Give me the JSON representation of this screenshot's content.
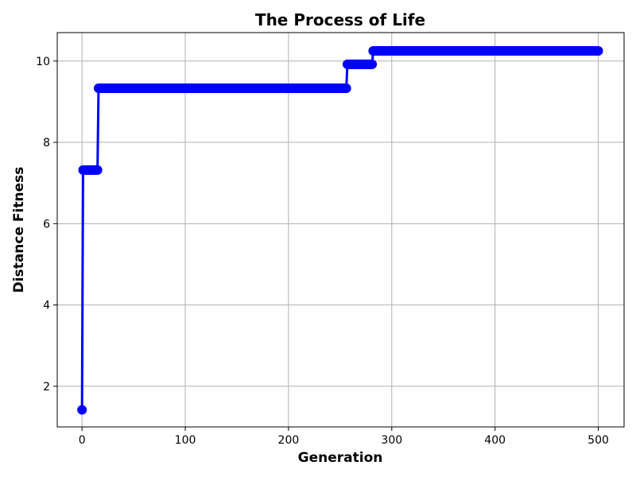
{
  "chart_data": {
    "type": "line",
    "title": "The Process of Life",
    "xlabel": "Generation",
    "ylabel": "Distance Fitness",
    "xlim": [
      -24,
      525
    ],
    "ylim": [
      1.0,
      10.7
    ],
    "xticks": [
      0,
      100,
      200,
      300,
      400,
      500
    ],
    "yticks": [
      2,
      4,
      6,
      8,
      10
    ],
    "grid": true,
    "series": [
      {
        "color": "#0000ff",
        "marker": "circle",
        "segments": [
          {
            "x_start": 0,
            "x_end": 0,
            "y": 1.42
          },
          {
            "x_start": 1,
            "x_end": 15,
            "y": 7.32
          },
          {
            "x_start": 16,
            "x_end": 256,
            "y": 9.33
          },
          {
            "x_start": 257,
            "x_end": 281,
            "y": 9.92
          },
          {
            "x_start": 282,
            "x_end": 500,
            "y": 10.25
          }
        ]
      }
    ]
  }
}
